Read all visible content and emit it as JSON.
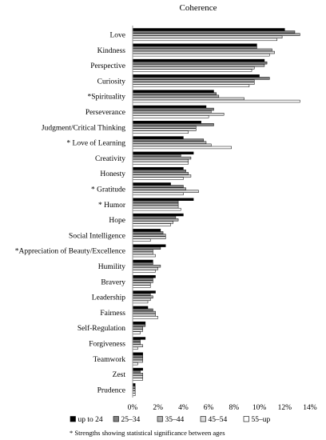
{
  "chart_data": {
    "type": "bar",
    "orientation": "horizontal",
    "title": "Coherence",
    "xlabel": "",
    "ylabel": "",
    "xlim": [
      0,
      14
    ],
    "x_ticks": [
      "0%",
      "2%",
      "4%",
      "6%",
      "8%",
      "10%",
      "12%",
      "14%"
    ],
    "categories": [
      "Love",
      "Kindness",
      "Perspective",
      "Curiosity",
      "*Spirituality",
      "Perseverance",
      "Judgment/Critical Thinking",
      "* Love of Learning",
      "Creativity",
      "Honesty",
      "* Gratitude",
      "* Humor",
      "Hope",
      "Social Intelligence",
      "*Appreciation of Beauty/Excellence",
      "Humility",
      "Bravery",
      "Leadership",
      "Fairness",
      "Self-Regulation",
      "Forgiveness",
      "Teamwork",
      "Zest",
      "Prudence"
    ],
    "series": [
      {
        "name": "up to 24",
        "color": "#000000",
        "values": [
          12.0,
          9.8,
          10.4,
          10.0,
          6.4,
          5.8,
          5.4,
          4.0,
          4.8,
          4.0,
          3.0,
          4.8,
          4.0,
          2.2,
          2.6,
          1.6,
          1.8,
          1.8,
          1.2,
          1.0,
          1.0,
          0.8,
          0.8,
          0.2
        ]
      },
      {
        "name": "25–34",
        "color": "#808080",
        "values": [
          12.8,
          9.8,
          10.6,
          10.8,
          6.6,
          6.4,
          6.4,
          5.6,
          3.8,
          4.2,
          4.0,
          3.6,
          3.4,
          2.4,
          2.2,
          1.6,
          1.6,
          1.4,
          1.6,
          1.0,
          0.6,
          0.8,
          0.6,
          0.2
        ]
      },
      {
        "name": "35–44",
        "color": "#b0b0b0",
        "values": [
          13.2,
          11.0,
          10.4,
          9.6,
          6.8,
          6.2,
          5.0,
          5.8,
          4.6,
          4.4,
          4.2,
          3.6,
          3.6,
          2.6,
          1.6,
          2.2,
          1.6,
          1.6,
          1.8,
          0.8,
          0.6,
          0.8,
          0.8,
          0.2
        ]
      },
      {
        "name": "45–54",
        "color": "#dcdcdc",
        "values": [
          11.8,
          11.2,
          9.6,
          9.6,
          8.8,
          7.2,
          5.0,
          6.2,
          4.4,
          4.6,
          5.2,
          3.6,
          3.2,
          2.6,
          1.6,
          2.0,
          1.4,
          1.4,
          1.8,
          0.8,
          0.8,
          0.8,
          0.8,
          0.2
        ]
      },
      {
        "name": "55–up",
        "color": "#ffffff",
        "values": [
          11.4,
          10.8,
          9.4,
          9.2,
          13.2,
          6.0,
          4.4,
          7.8,
          4.4,
          4.0,
          4.0,
          3.8,
          3.0,
          1.4,
          1.8,
          1.8,
          1.4,
          1.2,
          2.0,
          0.6,
          0.4,
          0.4,
          0.8,
          0.2
        ]
      }
    ],
    "legend_position": "bottom",
    "footnote": "* Strengths showing statistical significance between ages",
    "grid": false
  }
}
